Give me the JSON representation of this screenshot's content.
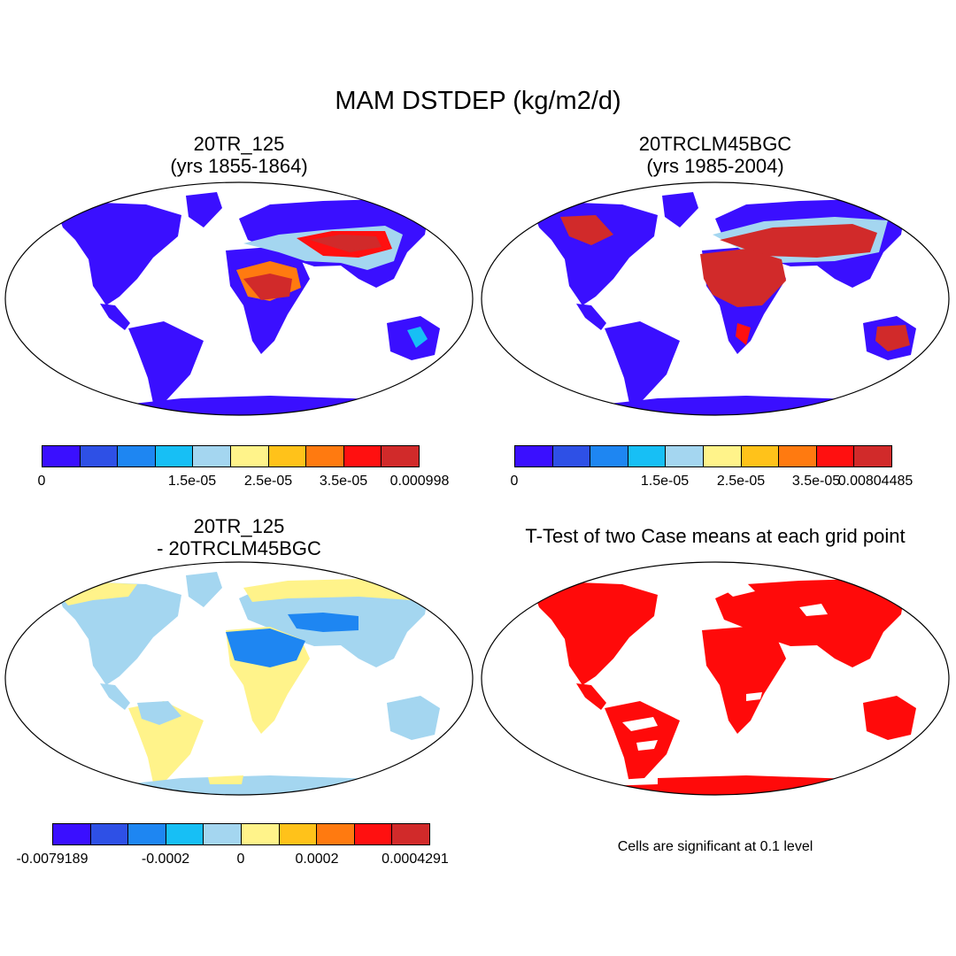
{
  "main_title": "MAM DSTDEP (kg/m2/d)",
  "palette": [
    "#3a0fff",
    "#2e50e6",
    "#1e86f2",
    "#17bff5",
    "#a4d6f0",
    "#fff38a",
    "#ffc21a",
    "#ff7a10",
    "#ff1010",
    "#d12a2a"
  ],
  "panels": [
    {
      "title_line1": "20TR_125",
      "title_line2": "(yrs 1855-1864)",
      "colorbar_labels": [
        "0",
        "1.5e-05",
        "2.5e-05",
        "3.5e-05",
        "0.000998"
      ]
    },
    {
      "title_line1": "20TRCLM45BGC",
      "title_line2": "(yrs 1985-2004)",
      "colorbar_labels": [
        "0",
        "1.5e-05",
        "2.5e-05",
        "3.5e-05",
        "0.00804485"
      ]
    },
    {
      "title_line1": "20TR_125",
      "title_line2": "- 20TRCLM45BGC",
      "colorbar_labels": [
        "-0.0079189",
        "-0.0002",
        "0",
        "0.0002",
        "0.0004291"
      ]
    },
    {
      "title_line1": "T-Test of two Case means at each grid point",
      "note": "Cells are significant at 0.1 level",
      "significant_color": "#ff0a0a"
    }
  ]
}
